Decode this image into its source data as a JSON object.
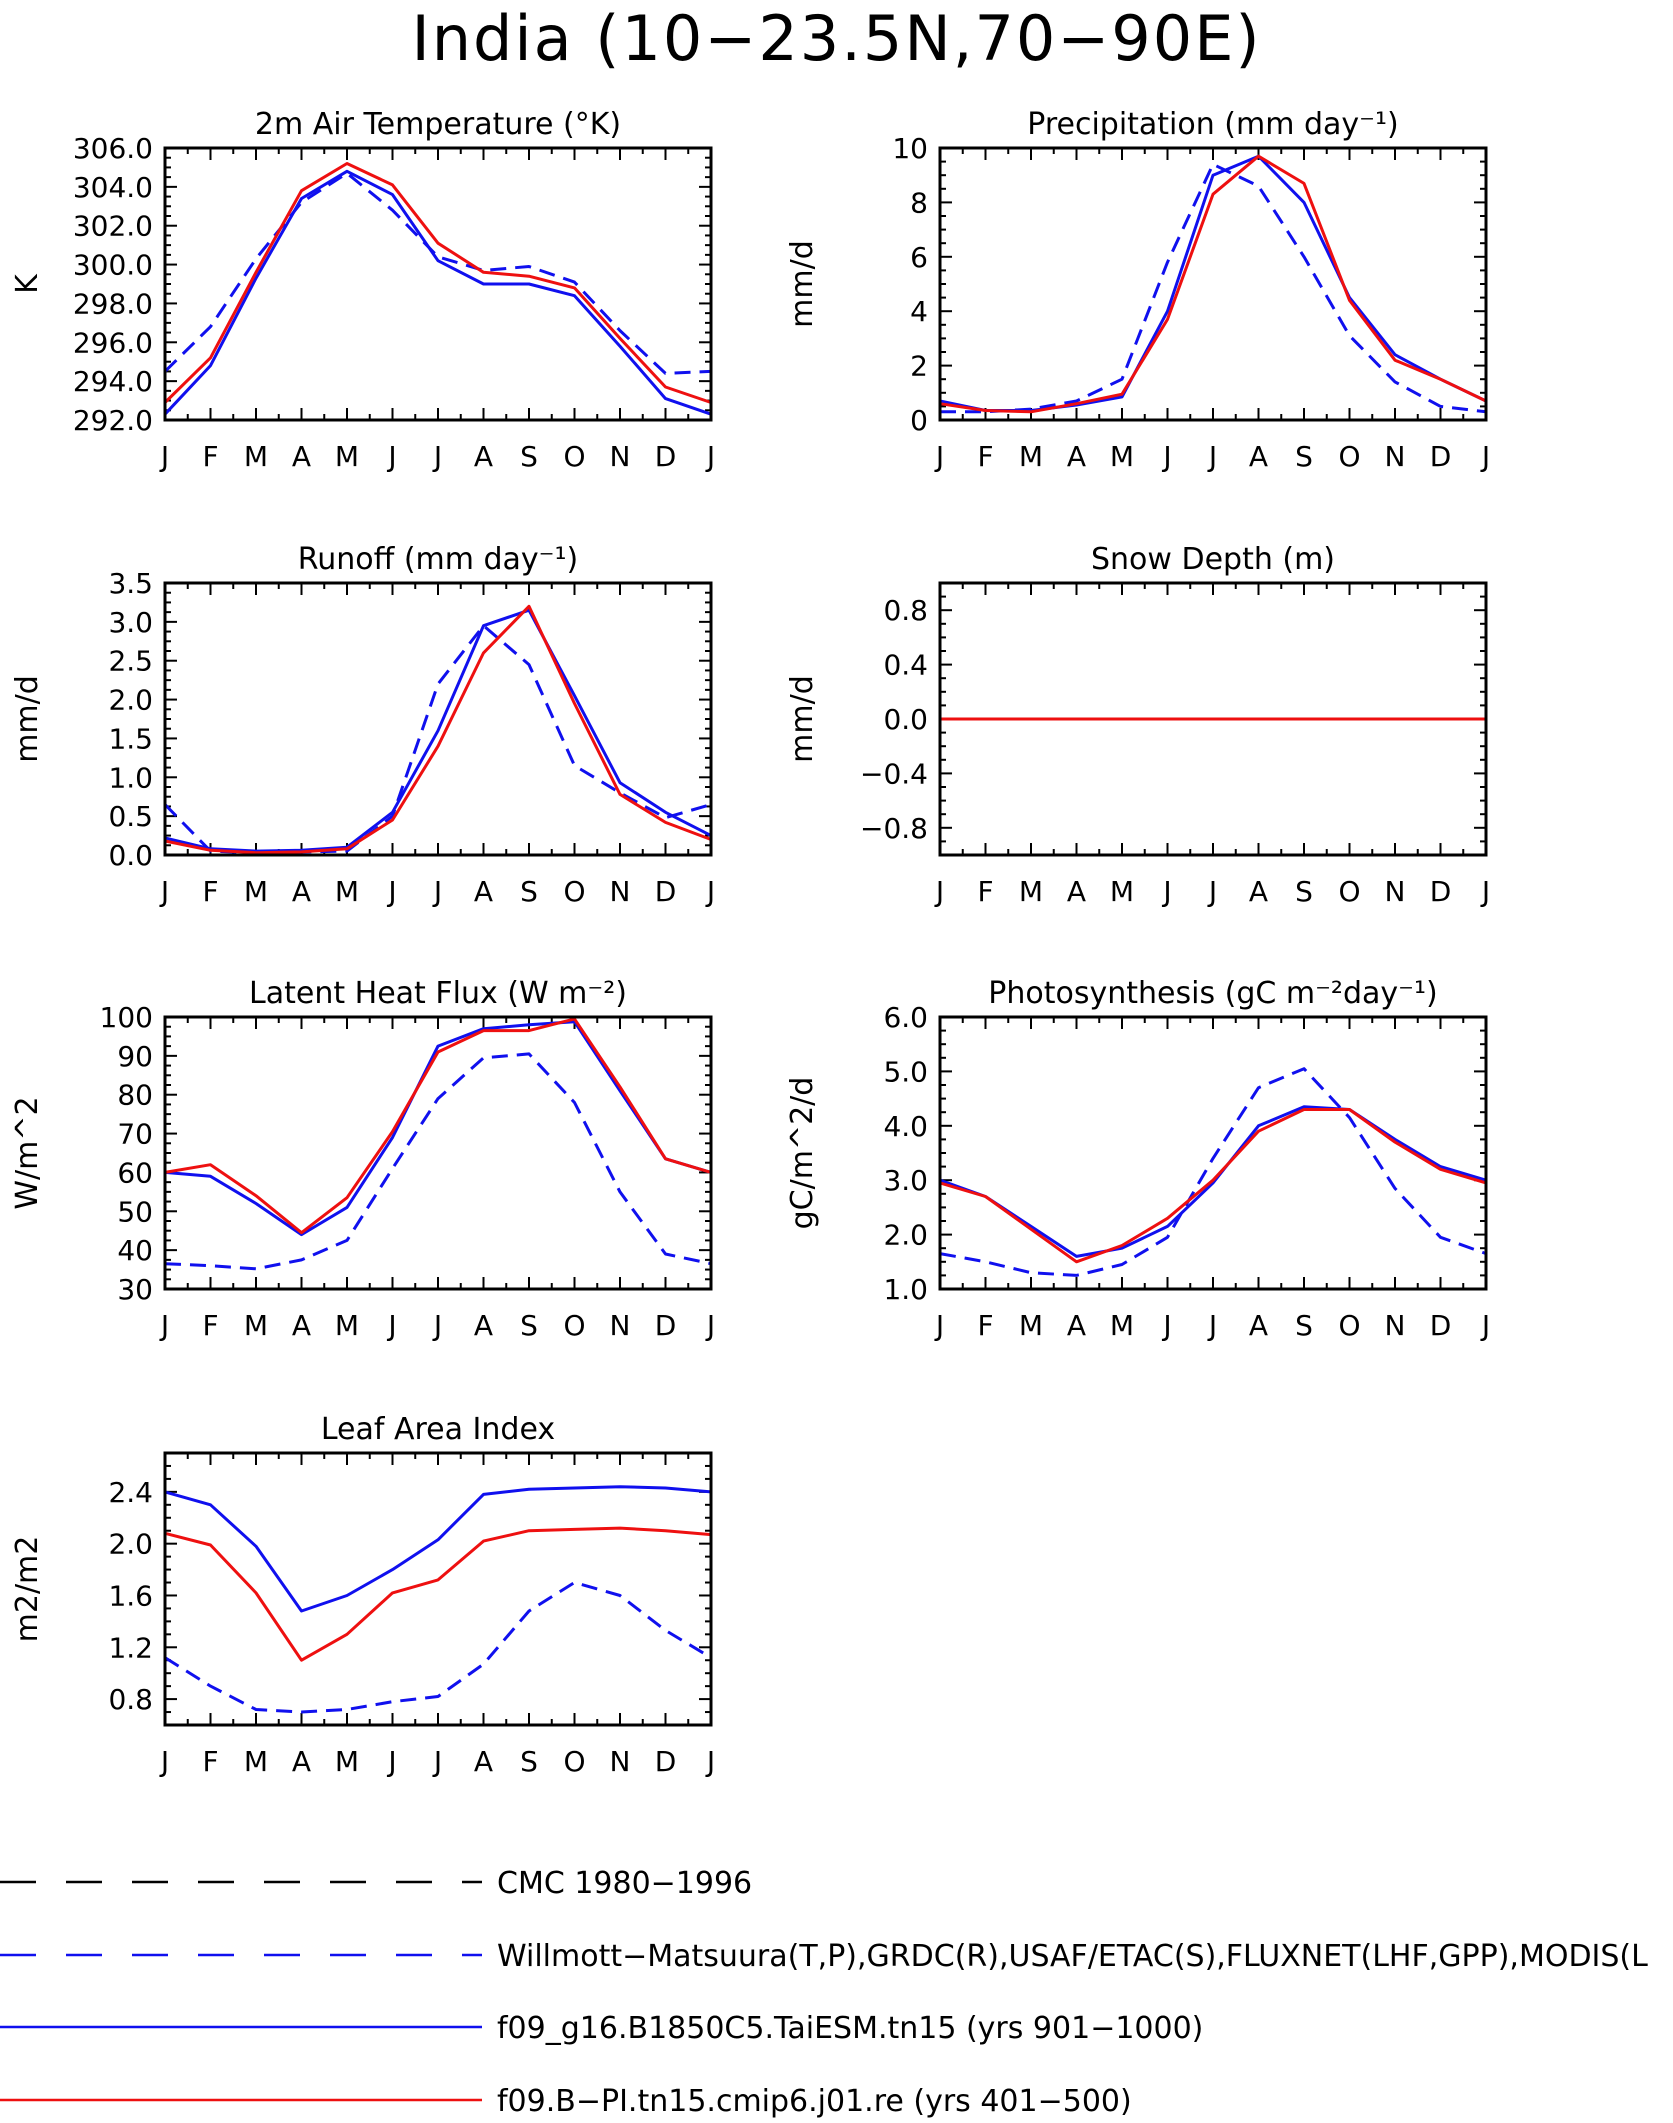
{
  "page": {
    "title": "India (10−23.5N,70−90E)"
  },
  "months": [
    "J",
    "F",
    "M",
    "A",
    "M",
    "J",
    "J",
    "A",
    "S",
    "O",
    "N",
    "D",
    "J"
  ],
  "series_styles": [
    {
      "key": "cmc",
      "color": "#000000",
      "dashed": true
    },
    {
      "key": "obs",
      "color": "#1010ee",
      "dashed": true
    },
    {
      "key": "taiesm",
      "color": "#1010ee",
      "dashed": false
    },
    {
      "key": "cesm",
      "color": "#ee1010",
      "dashed": false
    }
  ],
  "legend": [
    {
      "key": "cmc",
      "label": "CMC 1980−1996"
    },
    {
      "key": "obs",
      "label": "Willmott−Matsuura(T,P),GRDC(R),USAF/ETAC(S),FLUXNET(LHF,GPP),MODIS(L"
    },
    {
      "key": "taiesm",
      "label": "f09_g16.B1850C5.TaiESM.tn15 (yrs 901−1000)"
    },
    {
      "key": "cesm",
      "label": "f09.B−PI.tn15.cmip6.j01.re (yrs 401−500)"
    }
  ],
  "chart_data": [
    {
      "type": "line",
      "title": "2m Air Temperature (°K)",
      "ylabel": "K",
      "ylim": [
        292,
        306
      ],
      "yticks": [
        292,
        294,
        296,
        298,
        300,
        302,
        304,
        306
      ],
      "ytick_labels": [
        "292.0",
        "294.0",
        "296.0",
        "298.0",
        "300.0",
        "302.0",
        "304.0",
        "306.0"
      ],
      "categories": [
        "J",
        "F",
        "M",
        "A",
        "M",
        "J",
        "J",
        "A",
        "S",
        "O",
        "N",
        "D",
        "J"
      ],
      "series": [
        {
          "key": "obs",
          "values": [
            294.5,
            296.8,
            300.3,
            303.2,
            304.7,
            302.8,
            300.4,
            299.7,
            299.9,
            299.1,
            296.6,
            294.4,
            294.5
          ]
        },
        {
          "key": "taiesm",
          "values": [
            292.3,
            294.8,
            299.3,
            303.4,
            304.8,
            303.6,
            300.2,
            299.0,
            299.0,
            298.4,
            295.8,
            293.1,
            292.3
          ]
        },
        {
          "key": "cesm",
          "values": [
            292.9,
            295.2,
            299.6,
            303.8,
            305.2,
            304.1,
            301.1,
            299.6,
            299.4,
            298.8,
            296.2,
            293.7,
            292.9
          ]
        }
      ]
    },
    {
      "type": "line",
      "title": "Precipitation (mm day⁻¹)",
      "ylabel": "mm/d",
      "ylim": [
        0,
        10
      ],
      "yticks": [
        0,
        2,
        4,
        6,
        8,
        10
      ],
      "ytick_labels": [
        "0",
        "2",
        "4",
        "6",
        "8",
        "10"
      ],
      "categories": [
        "J",
        "F",
        "M",
        "A",
        "M",
        "J",
        "J",
        "A",
        "S",
        "O",
        "N",
        "D",
        "J"
      ],
      "series": [
        {
          "key": "obs",
          "values": [
            0.3,
            0.3,
            0.4,
            0.7,
            1.5,
            5.8,
            9.4,
            8.6,
            6.0,
            3.1,
            1.4,
            0.5,
            0.3
          ]
        },
        {
          "key": "taiesm",
          "values": [
            0.7,
            0.35,
            0.35,
            0.55,
            0.85,
            4.0,
            9.0,
            9.7,
            8.0,
            4.5,
            2.4,
            1.5,
            0.7
          ]
        },
        {
          "key": "cesm",
          "values": [
            0.6,
            0.35,
            0.3,
            0.6,
            0.95,
            3.7,
            8.3,
            9.7,
            8.7,
            4.4,
            2.2,
            1.5,
            0.7
          ]
        }
      ]
    },
    {
      "type": "line",
      "title": "Runoff (mm day⁻¹)",
      "ylabel": "mm/d",
      "ylim": [
        0,
        3.5
      ],
      "yticks": [
        0,
        0.5,
        1.0,
        1.5,
        2.0,
        2.5,
        3.0,
        3.5
      ],
      "ytick_labels": [
        "0.0",
        "0.5",
        "1.0",
        "1.5",
        "2.0",
        "2.5",
        "3.0",
        "3.5"
      ],
      "categories": [
        "J",
        "F",
        "M",
        "A",
        "M",
        "J",
        "J",
        "A",
        "S",
        "O",
        "N",
        "D",
        "J"
      ],
      "series": [
        {
          "key": "obs",
          "values": [
            0.65,
            0.05,
            0.03,
            0.04,
            0.05,
            0.5,
            2.2,
            2.95,
            2.45,
            1.15,
            0.8,
            0.48,
            0.65
          ]
        },
        {
          "key": "taiesm",
          "values": [
            0.22,
            0.08,
            0.05,
            0.06,
            0.1,
            0.55,
            1.6,
            2.95,
            3.15,
            2.05,
            0.93,
            0.55,
            0.25
          ]
        },
        {
          "key": "cesm",
          "values": [
            0.18,
            0.06,
            0.03,
            0.04,
            0.08,
            0.45,
            1.4,
            2.6,
            3.2,
            1.95,
            0.78,
            0.42,
            0.2
          ]
        }
      ]
    },
    {
      "type": "line",
      "title": "Snow Depth (m)",
      "ylabel": "mm/d",
      "ylim": [
        -1,
        1
      ],
      "yticks": [
        -0.8,
        -0.4,
        0,
        0.4,
        0.8
      ],
      "ytick_labels": [
        "−0.8",
        "−0.4",
        "0.0",
        "0.4",
        "0.8"
      ],
      "categories": [
        "J",
        "F",
        "M",
        "A",
        "M",
        "J",
        "J",
        "A",
        "S",
        "O",
        "N",
        "D",
        "J"
      ],
      "series": [
        {
          "key": "obs",
          "values": [
            0,
            0,
            0,
            0,
            0,
            0,
            0,
            0,
            0,
            0,
            0,
            0,
            0
          ]
        },
        {
          "key": "taiesm",
          "values": [
            0,
            0,
            0,
            0,
            0,
            0,
            0,
            0,
            0,
            0,
            0,
            0,
            0
          ]
        },
        {
          "key": "cesm",
          "values": [
            0,
            0,
            0,
            0,
            0,
            0,
            0,
            0,
            0,
            0,
            0,
            0,
            0
          ]
        }
      ]
    },
    {
      "type": "line",
      "title": "Latent Heat Flux (W m⁻²)",
      "ylabel": "W/m^2",
      "ylim": [
        30,
        100
      ],
      "yticks": [
        30,
        40,
        50,
        60,
        70,
        80,
        90,
        100
      ],
      "ytick_labels": [
        "30",
        "40",
        "50",
        "60",
        "70",
        "80",
        "90",
        "100"
      ],
      "categories": [
        "J",
        "F",
        "M",
        "A",
        "M",
        "J",
        "J",
        "A",
        "S",
        "O",
        "N",
        "D",
        "J"
      ],
      "series": [
        {
          "key": "obs",
          "values": [
            36.5,
            36.0,
            35.2,
            37.5,
            42.5,
            61.0,
            79.0,
            89.5,
            90.5,
            78.0,
            55.0,
            39.0,
            36.5
          ]
        },
        {
          "key": "taiesm",
          "values": [
            60.0,
            59.0,
            52.0,
            44.0,
            51.0,
            69.0,
            92.5,
            97.0,
            98.0,
            98.8,
            81.0,
            63.5,
            60.0
          ]
        },
        {
          "key": "cesm",
          "values": [
            60.0,
            62.0,
            54.0,
            44.5,
            53.5,
            70.5,
            91.0,
            96.5,
            96.5,
            99.5,
            82.0,
            63.5,
            60.0
          ]
        }
      ]
    },
    {
      "type": "line",
      "title": "Photosynthesis (gC m⁻²day⁻¹)",
      "ylabel": "gC/m^2/d",
      "ylim": [
        1.0,
        6.0
      ],
      "yticks": [
        1,
        2,
        3,
        4,
        5,
        6
      ],
      "ytick_labels": [
        "1.0",
        "2.0",
        "3.0",
        "4.0",
        "5.0",
        "6.0"
      ],
      "categories": [
        "J",
        "F",
        "M",
        "A",
        "M",
        "J",
        "J",
        "A",
        "S",
        "O",
        "N",
        "D",
        "J"
      ],
      "series": [
        {
          "key": "obs",
          "values": [
            1.65,
            1.5,
            1.3,
            1.25,
            1.45,
            1.95,
            3.4,
            4.7,
            5.05,
            4.15,
            2.85,
            1.95,
            1.65
          ]
        },
        {
          "key": "taiesm",
          "values": [
            3.0,
            2.7,
            2.15,
            1.6,
            1.75,
            2.15,
            2.95,
            4.0,
            4.35,
            4.3,
            3.75,
            3.25,
            3.0
          ]
        },
        {
          "key": "cesm",
          "values": [
            2.95,
            2.7,
            2.1,
            1.5,
            1.8,
            2.3,
            3.0,
            3.9,
            4.3,
            4.3,
            3.7,
            3.2,
            2.95
          ]
        }
      ]
    },
    {
      "type": "line",
      "title": "Leaf Area Index",
      "ylabel": "m2/m2",
      "ylim": [
        0.6,
        2.7
      ],
      "yticks": [
        0.8,
        1.2,
        1.6,
        2.0,
        2.4
      ],
      "ytick_labels": [
        "0.8",
        "1.2",
        "1.6",
        "2.0",
        "2.4"
      ],
      "categories": [
        "J",
        "F",
        "M",
        "A",
        "M",
        "J",
        "J",
        "A",
        "S",
        "O",
        "N",
        "D",
        "J"
      ],
      "series": [
        {
          "key": "obs",
          "values": [
            1.12,
            0.9,
            0.72,
            0.7,
            0.72,
            0.78,
            0.82,
            1.07,
            1.48,
            1.7,
            1.6,
            1.33,
            1.12
          ]
        },
        {
          "key": "taiesm",
          "values": [
            2.4,
            2.3,
            1.98,
            1.48,
            1.6,
            1.8,
            2.03,
            2.38,
            2.42,
            2.43,
            2.44,
            2.43,
            2.4
          ]
        },
        {
          "key": "cesm",
          "values": [
            2.08,
            1.99,
            1.62,
            1.1,
            1.3,
            1.62,
            1.72,
            2.02,
            2.1,
            2.11,
            2.12,
            2.1,
            2.07
          ]
        }
      ]
    }
  ]
}
